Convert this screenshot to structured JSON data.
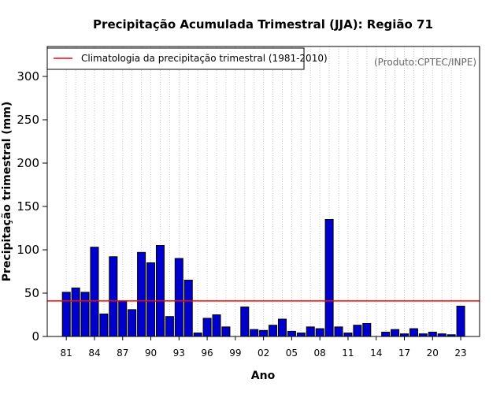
{
  "chart_data": {
    "type": "bar",
    "title": "Precipitação Acumulada Trimestral (JJA): Região 71",
    "xlabel": "Ano",
    "ylabel": "Precipitação trimestral (mm)",
    "ylim": [
      0,
      335
    ],
    "yticks": [
      0,
      50,
      100,
      150,
      200,
      250,
      300
    ],
    "categories": [
      1981,
      1982,
      1983,
      1984,
      1985,
      1986,
      1987,
      1988,
      1989,
      1990,
      1991,
      1992,
      1993,
      1994,
      1995,
      1996,
      1997,
      1998,
      1999,
      2000,
      2001,
      2002,
      2003,
      2004,
      2005,
      2006,
      2007,
      2008,
      2009,
      2010,
      2011,
      2012,
      2013,
      2014,
      2015,
      2016,
      2017,
      2018,
      2019,
      2020,
      2021,
      2022,
      2023
    ],
    "xtick_labels": [
      "81",
      "84",
      "87",
      "90",
      "93",
      "96",
      "99",
      "02",
      "05",
      "08",
      "11",
      "14",
      "17",
      "20",
      "23"
    ],
    "xtick_categories": [
      1981,
      1984,
      1987,
      1990,
      1993,
      1996,
      1999,
      2002,
      2005,
      2008,
      2011,
      2014,
      2017,
      2020,
      2023
    ],
    "series": [
      {
        "name": "Precipitação trimestral",
        "color": "#0000cd",
        "values": [
          51,
          56,
          51,
          103,
          26,
          92,
          41,
          31,
          97,
          85,
          105,
          23,
          90,
          65,
          4,
          21,
          25,
          11,
          0,
          34,
          8,
          7,
          13,
          20,
          6,
          4,
          11,
          9,
          135,
          11,
          4,
          13,
          15,
          0,
          5,
          8,
          3,
          9,
          3,
          5,
          3,
          2,
          35
        ]
      }
    ],
    "climatology": {
      "label": "Climatologia da precipitação trimestral (1981-2010)",
      "value": 41,
      "color": "#ff0000"
    },
    "legend_position": "top-left",
    "grid": "vertical-dotted",
    "credit": "(Produto:CPTEC/INPE)"
  }
}
